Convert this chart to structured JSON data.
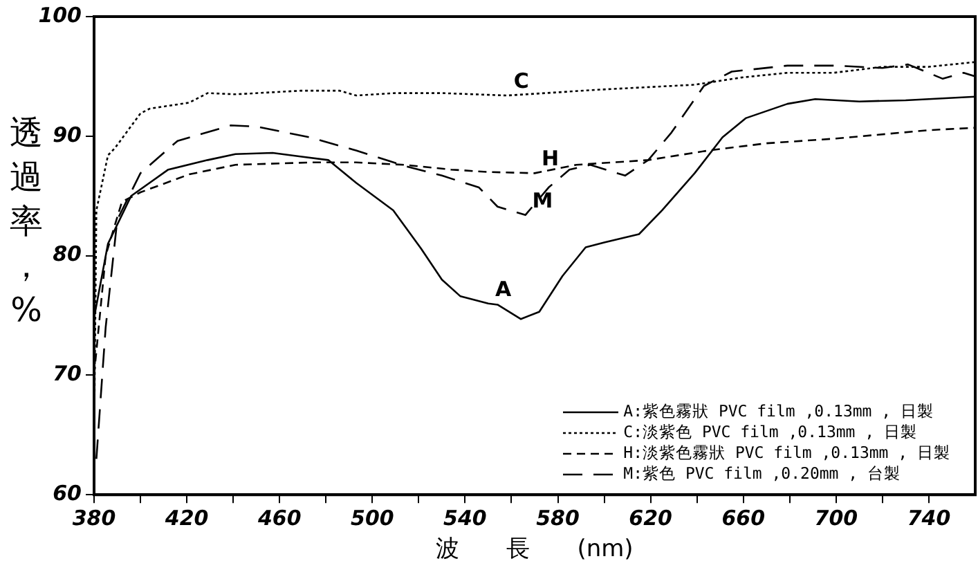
{
  "chart_data": {
    "type": "line",
    "xlabel": "波　　長　　(nm)",
    "ylabel": "透過率，%",
    "xlim": [
      380,
      760
    ],
    "ylim": [
      60,
      100
    ],
    "xticks": [
      380,
      {
        "value": 400,
        "label": null
      },
      420,
      {
        "value": 440,
        "label": null
      },
      460,
      {
        "value": 480,
        "label": null
      },
      500,
      {
        "value": 520,
        "label": null
      },
      540,
      {
        "value": 560,
        "label": null
      },
      580,
      {
        "value": 600,
        "label": null
      },
      620,
      {
        "value": 640,
        "label": null
      },
      660,
      {
        "value": 680,
        "label": null
      },
      700,
      {
        "value": 720,
        "label": null
      },
      740
    ],
    "yticks": [
      60,
      70,
      80,
      90,
      100
    ],
    "grid": false,
    "legend": "bottom right",
    "marker": "none",
    "series": [
      {
        "name": "A:紫色霧狀 PVC film ,0.13mm , 日製",
        "color": "#000000",
        "line_style": "solid",
        "x": [
          380,
          386,
          396,
          412,
          429,
          441,
          457,
          469,
          481,
          493,
          509,
          521,
          530,
          538,
          550,
          554,
          564,
          572,
          582,
          592,
          600,
          615,
          625,
          639,
          651,
          661,
          679,
          691,
          710,
          730,
          760
        ],
        "values": [
          74.8,
          81,
          85,
          87.2,
          88,
          88.5,
          88.6,
          88.3,
          88,
          86.1,
          83.8,
          80.6,
          78,
          76.6,
          76,
          75.9,
          74.7,
          75.3,
          78.3,
          80.7,
          81.1,
          81.8,
          83.8,
          86.9,
          89.9,
          91.5,
          92.7,
          93.1,
          92.9,
          93,
          93.3
        ]
      },
      {
        "name": "C:淡紫色 PVC film ,0.13mm , 日製",
        "color": "#000000",
        "line_style": "dotted",
        "x": [
          380,
          381,
          386,
          389,
          400,
          404,
          421,
          429,
          441,
          469,
          486,
          493,
          510,
          530,
          558,
          599,
          639,
          659,
          679,
          699,
          720,
          740,
          760
        ],
        "values": [
          64,
          83.8,
          88.4,
          89,
          91.9,
          92.3,
          92.8,
          93.6,
          93.5,
          93.8,
          93.8,
          93.4,
          93.6,
          93.6,
          93.4,
          93.9,
          94.3,
          94.9,
          95.3,
          95.3,
          95.8,
          95.8,
          96.2
        ]
      },
      {
        "name": "H:淡紫色霧狀 PVC film ,0.13mm , 日製",
        "color": "#000000",
        "line_style": "dashed",
        "x": [
          380,
          385,
          392,
          400,
          421,
          441,
          473,
          493,
          514,
          534,
          550,
          570,
          588,
          619,
          645,
          670,
          700,
          740,
          760
        ],
        "values": [
          70,
          80,
          84.5,
          85.3,
          86.8,
          87.6,
          87.8,
          87.8,
          87.6,
          87.2,
          87,
          86.9,
          87.6,
          88,
          88.8,
          89.4,
          89.8,
          90.5,
          90.7
        ]
      },
      {
        "name": "M:紫色 PVC film ,0.20mm , 台製",
        "color": "#000000",
        "line_style": "dashed",
        "x": [
          381,
          385,
          390,
          400,
          416,
          439,
          450,
          473,
          493,
          514,
          530,
          546,
          554,
          566,
          576,
          585,
          594,
          609,
          619,
          629,
          643,
          655,
          679,
          700,
          720,
          731,
          746,
          755,
          760
        ],
        "values": [
          63,
          74,
          83,
          86.9,
          89.6,
          90.9,
          90.8,
          89.9,
          88.8,
          87.5,
          86.7,
          85.7,
          84.1,
          83.4,
          85.7,
          87.2,
          87.6,
          86.7,
          88,
          90.3,
          94.2,
          95.4,
          95.9,
          95.9,
          95.7,
          96,
          94.8,
          95.3,
          95
        ]
      }
    ],
    "annotations": [
      {
        "text": "C",
        "x": 558,
        "y": 93.4
      },
      {
        "text": "H",
        "x": 570,
        "y": 86.9
      },
      {
        "text": "M",
        "x": 566,
        "y": 83.4
      },
      {
        "text": "A",
        "x": 550,
        "y": 76
      }
    ]
  }
}
